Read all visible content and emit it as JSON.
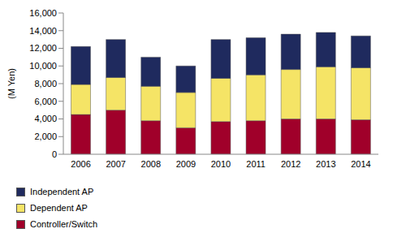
{
  "chart_data": {
    "type": "bar",
    "stacked": true,
    "grid": false,
    "legend": "bottom",
    "y_label": "(M Yen)",
    "categories": [
      "2006",
      "2007",
      "2008",
      "2009",
      "2010",
      "2011",
      "2012",
      "2013",
      "2014"
    ],
    "ylim": [
      0,
      16000
    ],
    "yticks": [
      0,
      {
        "value": 2000,
        "label": "2,000"
      },
      {
        "value": 4000,
        "label": "4,000"
      },
      {
        "value": 6000,
        "label": "6,000"
      },
      {
        "value": 8000,
        "label": "8,000"
      },
      {
        "value": 10000,
        "label": "10,000"
      },
      {
        "value": 12000,
        "label": "12,000"
      },
      {
        "value": 14000,
        "label": "14,000"
      },
      {
        "value": 16000,
        "label": "16,000"
      }
    ],
    "series": [
      {
        "name": "Controller/Switch",
        "color": "#A0002A",
        "values": [
          4500,
          5000,
          3800,
          3000,
          3700,
          3800,
          4000,
          4000,
          3900
        ]
      },
      {
        "name": "Dependent AP",
        "color": "#F5E466",
        "values": [
          3400,
          3700,
          3900,
          4000,
          4900,
          5200,
          5600,
          5900,
          5900
        ]
      },
      {
        "name": "Independent AP",
        "color": "#1F2A5E",
        "values": [
          4300,
          4300,
          3300,
          3000,
          4400,
          4200,
          4000,
          3900,
          3600
        ]
      }
    ]
  }
}
